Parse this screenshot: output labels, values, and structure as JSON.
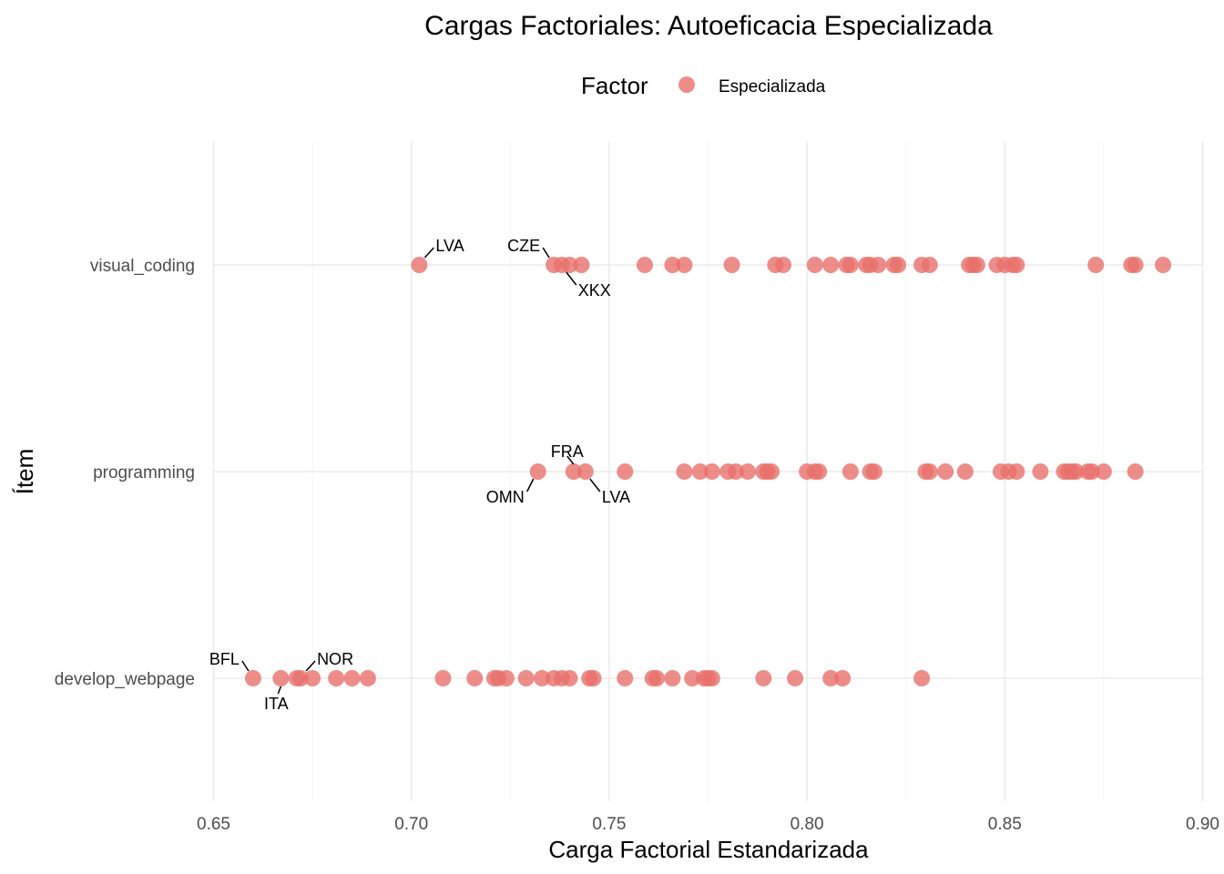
{
  "chart_data": {
    "type": "scatter",
    "title": "Cargas Factoriales: Autoeficacia Especializada",
    "xlabel": "Carga Factorial Estandarizada",
    "ylabel": "Ítem",
    "xlim": [
      0.65,
      0.9
    ],
    "x_ticks": [
      "0.65",
      "0.70",
      "0.75",
      "0.80",
      "0.85",
      "0.90"
    ],
    "x_tick_values": [
      0.65,
      0.7,
      0.75,
      0.8,
      0.85,
      0.9
    ],
    "categories": [
      "develop_webpage",
      "programming",
      "visual_coding"
    ],
    "grid": true,
    "legend": {
      "title": "Factor",
      "position": "top",
      "entries": [
        {
          "name": "Especializada",
          "color": "#E8706B"
        }
      ]
    },
    "point_color": "#E8706B",
    "series": [
      {
        "name": "Especializada",
        "points": [
          {
            "category": "visual_coding",
            "x": [
              0.702,
              0.736,
              0.738,
              0.74,
              0.743,
              0.759,
              0.766,
              0.769,
              0.781,
              0.792,
              0.794,
              0.802,
              0.806,
              0.81,
              0.811,
              0.815,
              0.816,
              0.818,
              0.822,
              0.823,
              0.829,
              0.831,
              0.841,
              0.842,
              0.843,
              0.848,
              0.85,
              0.852,
              0.853,
              0.873,
              0.882,
              0.883,
              0.89
            ]
          },
          {
            "category": "programming",
            "x": [
              0.732,
              0.741,
              0.744,
              0.754,
              0.769,
              0.773,
              0.776,
              0.78,
              0.782,
              0.785,
              0.789,
              0.79,
              0.791,
              0.8,
              0.802,
              0.803,
              0.811,
              0.816,
              0.817,
              0.83,
              0.831,
              0.835,
              0.84,
              0.849,
              0.851,
              0.853,
              0.859,
              0.865,
              0.866,
              0.867,
              0.868,
              0.871,
              0.872,
              0.875,
              0.883
            ]
          },
          {
            "category": "develop_webpage",
            "x": [
              0.66,
              0.667,
              0.671,
              0.672,
              0.675,
              0.681,
              0.685,
              0.689,
              0.708,
              0.716,
              0.721,
              0.722,
              0.724,
              0.729,
              0.733,
              0.736,
              0.738,
              0.74,
              0.745,
              0.746,
              0.754,
              0.761,
              0.762,
              0.766,
              0.771,
              0.774,
              0.775,
              0.776,
              0.789,
              0.797,
              0.806,
              0.809,
              0.829
            ]
          }
        ]
      }
    ],
    "annotations": [
      {
        "text": "LVA",
        "category": "visual_coding",
        "x": 0.702,
        "direction": "up-right"
      },
      {
        "text": "CZE",
        "category": "visual_coding",
        "x": 0.736,
        "direction": "up-left"
      },
      {
        "text": "XKX",
        "category": "visual_coding",
        "x": 0.738,
        "direction": "down-right"
      },
      {
        "text": "FRA",
        "category": "programming",
        "x": 0.741,
        "direction": "up"
      },
      {
        "text": "OMN",
        "category": "programming",
        "x": 0.732,
        "direction": "down-left"
      },
      {
        "text": "LVA",
        "category": "programming",
        "x": 0.744,
        "direction": "down-right"
      },
      {
        "text": "BFL",
        "category": "develop_webpage",
        "x": 0.66,
        "direction": "up-left"
      },
      {
        "text": "NOR",
        "category": "develop_webpage",
        "x": 0.672,
        "direction": "up-right"
      },
      {
        "text": "ITA",
        "category": "develop_webpage",
        "x": 0.667,
        "direction": "down"
      }
    ]
  }
}
